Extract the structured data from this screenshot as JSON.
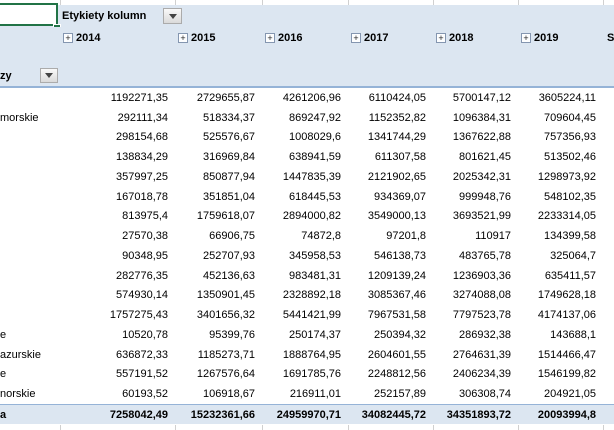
{
  "pivot_table": {
    "column_area_label": "Etykiety kolumn",
    "row_area_label_fragment": "zy",
    "grand_total_column_label": "Suma końcowa",
    "years": [
      "2014",
      "2015",
      "2016",
      "2017",
      "2018",
      "2019"
    ],
    "rows": [
      {
        "label": "",
        "values": [
          "1192271,35",
          "2729655,87",
          "4261206,96",
          "6110424,05",
          "5700147,12",
          "3605224,11"
        ]
      },
      {
        "label": "morskie",
        "values": [
          "292111,34",
          "518334,37",
          "869247,92",
          "1152352,82",
          "1096384,31",
          "709604,45"
        ]
      },
      {
        "label": "",
        "values": [
          "298154,68",
          "525576,67",
          "1008029,6",
          "1341744,29",
          "1367622,88",
          "757356,93"
        ]
      },
      {
        "label": "",
        "values": [
          "138834,29",
          "316969,84",
          "638941,59",
          "611307,58",
          "801621,45",
          "513502,46"
        ]
      },
      {
        "label": "",
        "values": [
          "357997,25",
          "850877,94",
          "1447835,39",
          "2121902,65",
          "2025342,31",
          "1298973,92"
        ]
      },
      {
        "label": "",
        "values": [
          "167018,78",
          "351851,04",
          "618445,53",
          "934369,07",
          "999948,76",
          "548102,35"
        ]
      },
      {
        "label": "",
        "values": [
          "813975,4",
          "1759618,07",
          "2894000,82",
          "3549000,13",
          "3693521,99",
          "2233314,05"
        ]
      },
      {
        "label": "",
        "values": [
          "27570,38",
          "66906,75",
          "74872,8",
          "97201,8",
          "110917",
          "134399,58"
        ]
      },
      {
        "label": "",
        "values": [
          "90348,95",
          "252707,93",
          "345958,53",
          "546138,73",
          "483765,78",
          "325064,7"
        ]
      },
      {
        "label": "",
        "values": [
          "282776,35",
          "452136,63",
          "983481,31",
          "1209139,24",
          "1236903,36",
          "635411,57"
        ]
      },
      {
        "label": "",
        "values": [
          "574930,14",
          "1350901,45",
          "2328892,18",
          "3085367,46",
          "3274088,08",
          "1749628,18"
        ]
      },
      {
        "label": "",
        "values": [
          "1757275,43",
          "3401656,32",
          "5441421,99",
          "7967531,58",
          "7797523,78",
          "4174137,06"
        ]
      },
      {
        "label": "e",
        "values": [
          "10520,78",
          "95399,76",
          "250174,37",
          "250394,32",
          "286932,38",
          "143688,1"
        ]
      },
      {
        "label": "azurskie",
        "values": [
          "636872,33",
          "1185273,71",
          "1888764,95",
          "2604601,55",
          "2764631,39",
          "1514466,47"
        ]
      },
      {
        "label": "e",
        "values": [
          "557191,52",
          "1267576,64",
          "1691785,76",
          "2248812,56",
          "2406234,39",
          "1546199,82"
        ]
      },
      {
        "label": "norskie",
        "values": [
          "60193,52",
          "106918,67",
          "216911,01",
          "252157,89",
          "306308,74",
          "204921,05"
        ]
      }
    ],
    "grand_total_row": {
      "label_fragment": "a",
      "values": [
        "7258042,49",
        "15232361,66",
        "24959970,71",
        "34082445,72",
        "34351893,72",
        "20093994,8"
      ]
    }
  },
  "icons": {
    "expand_glyph": "+",
    "dropdown_arrow": "▼"
  },
  "colors": {
    "header_fill": "#dce6f1",
    "header_border": "#95b3d7",
    "selection_green": "#217346",
    "gridline": "#d0d0d0"
  }
}
